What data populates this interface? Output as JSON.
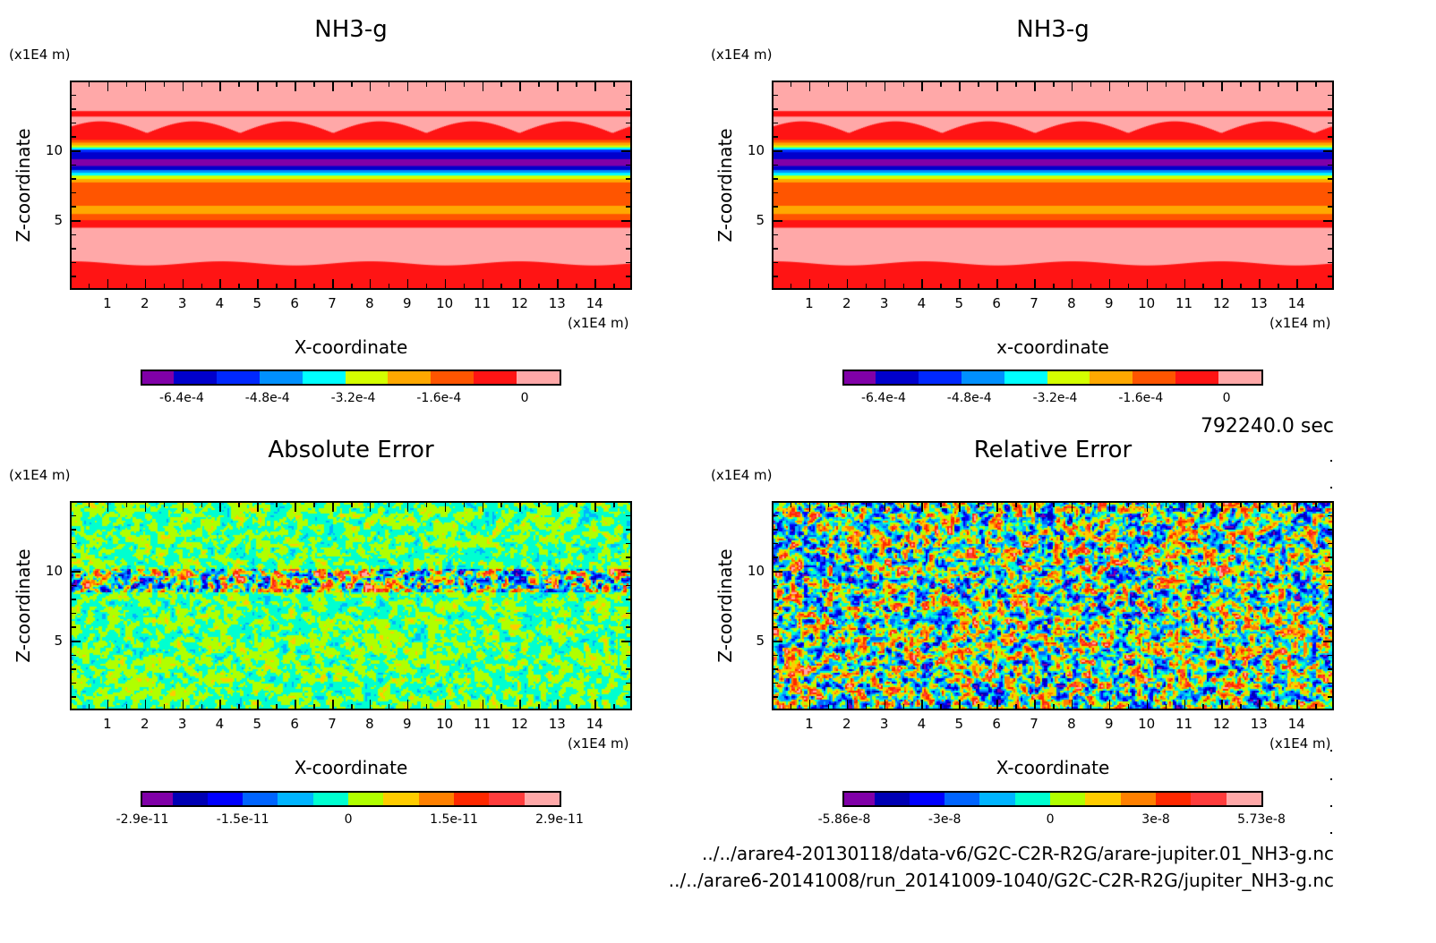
{
  "chart_data": [
    {
      "type": "heatmap",
      "title": "NH3-g",
      "xlabel": "X-coordinate",
      "ylabel": "Z-coordinate",
      "x_unit": "(x1E4 m)",
      "y_unit": "(x1E4 m)",
      "xlim": [
        0,
        15
      ],
      "ylim": [
        0,
        15
      ],
      "xticks": [
        "1",
        "2",
        "3",
        "4",
        "5",
        "6",
        "7",
        "8",
        "9",
        "10",
        "11",
        "12",
        "13",
        "14"
      ],
      "yticks": [
        "5",
        "10"
      ],
      "colorbar": {
        "colors": [
          "#8000a8",
          "#0000cc",
          "#0028ff",
          "#0090ff",
          "#00ffff",
          "#d4ff00",
          "#ffa800",
          "#ff5500",
          "#ff1414",
          "#ffa8a8"
        ],
        "ticks": [
          {
            "label": "-6.4e-4",
            "at": 1
          },
          {
            "label": "-4.8e-4",
            "at": 3
          },
          {
            "label": "-3.2e-4",
            "at": 5
          },
          {
            "label": "-1.6e-4",
            "at": 7
          },
          {
            "label": "0",
            "at": 9
          }
        ]
      }
    },
    {
      "type": "heatmap",
      "title": "NH3-g",
      "xlabel": "x-coordinate",
      "ylabel": "Z-coordinate",
      "x_unit": "(x1E4 m)",
      "y_unit": "(x1E4 m)",
      "xlim": [
        0,
        15
      ],
      "ylim": [
        0,
        15
      ],
      "xticks": [
        "1",
        "2",
        "3",
        "4",
        "5",
        "6",
        "7",
        "8",
        "9",
        "10",
        "11",
        "12",
        "13",
        "14"
      ],
      "yticks": [
        "5",
        "10"
      ],
      "colorbar": {
        "colors": [
          "#8000a8",
          "#0000cc",
          "#0028ff",
          "#0090ff",
          "#00ffff",
          "#d4ff00",
          "#ffa800",
          "#ff5500",
          "#ff1414",
          "#ffa8a8"
        ],
        "ticks": [
          {
            "label": "-6.4e-4",
            "at": 1
          },
          {
            "label": "-4.8e-4",
            "at": 3
          },
          {
            "label": "-3.2e-4",
            "at": 5
          },
          {
            "label": "-1.6e-4",
            "at": 7
          },
          {
            "label": "0",
            "at": 9
          }
        ]
      }
    },
    {
      "type": "heatmap",
      "title": "Absolute Error",
      "xlabel": "X-coordinate",
      "ylabel": "Z-coordinate",
      "x_unit": "(x1E4 m)",
      "y_unit": "(x1E4 m)",
      "xlim": [
        0,
        15
      ],
      "ylim": [
        0,
        15
      ],
      "xticks": [
        "1",
        "2",
        "3",
        "4",
        "5",
        "6",
        "7",
        "8",
        "9",
        "10",
        "11",
        "12",
        "13",
        "14"
      ],
      "yticks": [
        "5",
        "10"
      ],
      "colorbar": {
        "colors": [
          "#8000a8",
          "#0000b4",
          "#0000ff",
          "#0064ff",
          "#00b4ff",
          "#00ffd0",
          "#b0ff00",
          "#ffcc00",
          "#ff8000",
          "#ff2800",
          "#ff3c3c",
          "#ffa8a8"
        ],
        "ticks": [
          {
            "label": "-2.9e-11",
            "at": 0
          },
          {
            "label": "-1.5e-11",
            "at": 3
          },
          {
            "label": "0",
            "at": 6
          },
          {
            "label": "1.5e-11",
            "at": 9
          },
          {
            "label": "2.9e-11",
            "at": 12
          }
        ]
      }
    },
    {
      "type": "heatmap",
      "title": "Relative Error",
      "xlabel": "X-coordinate",
      "ylabel": "Z-coordinate",
      "x_unit": "(x1E4 m)",
      "y_unit": "(x1E4 m)",
      "xlim": [
        0,
        15
      ],
      "ylim": [
        0,
        15
      ],
      "xticks": [
        "1",
        "2",
        "3",
        "4",
        "5",
        "6",
        "7",
        "8",
        "9",
        "10",
        "11",
        "12",
        "13",
        "14"
      ],
      "yticks": [
        "5",
        "10"
      ],
      "colorbar": {
        "colors": [
          "#8000a8",
          "#0000b4",
          "#0000ff",
          "#0064ff",
          "#00b4ff",
          "#00ffd0",
          "#b0ff00",
          "#ffcc00",
          "#ff8000",
          "#ff2800",
          "#ff3c3c",
          "#ffa8a8"
        ],
        "ticks": [
          {
            "label": "-5.86e-8",
            "at": 0
          },
          {
            "label": "-3e-8",
            "at": 3
          },
          {
            "label": "0",
            "at": 6
          },
          {
            "label": "3e-8",
            "at": 9
          },
          {
            "label": "5.73e-8",
            "at": 12
          }
        ]
      }
    }
  ],
  "time_label": "792240.0 sec",
  "files": [
    "../../arare4-20130118/data-v6/G2C-C2R-R2G/arare-jupiter.01_NH3-g.nc",
    "../../arare6-20141008/run_20141009-1040/G2C-C2R-R2G/jupiter_NH3-g.nc"
  ]
}
